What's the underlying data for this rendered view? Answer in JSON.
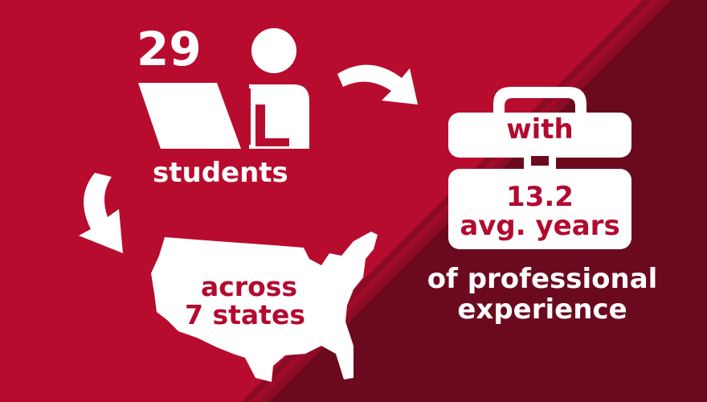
{
  "colors": {
    "primary_red": "#b80c2f",
    "dark_maroon": "#6b0a1e",
    "stripe": "#8e0b26",
    "white": "#ffffff"
  },
  "students": {
    "count": "29",
    "label": "students",
    "icon": "student-laptop-icon"
  },
  "states": {
    "line1": "across",
    "line2": "7 states",
    "icon": "usa-map-icon"
  },
  "experience": {
    "top": "with",
    "value": "13.2",
    "unit": "avg. years",
    "line1": "of professional",
    "line2": "experience",
    "icon": "briefcase-icon"
  },
  "arrows": [
    "curved-arrow-icon",
    "curved-arrow-icon"
  ]
}
